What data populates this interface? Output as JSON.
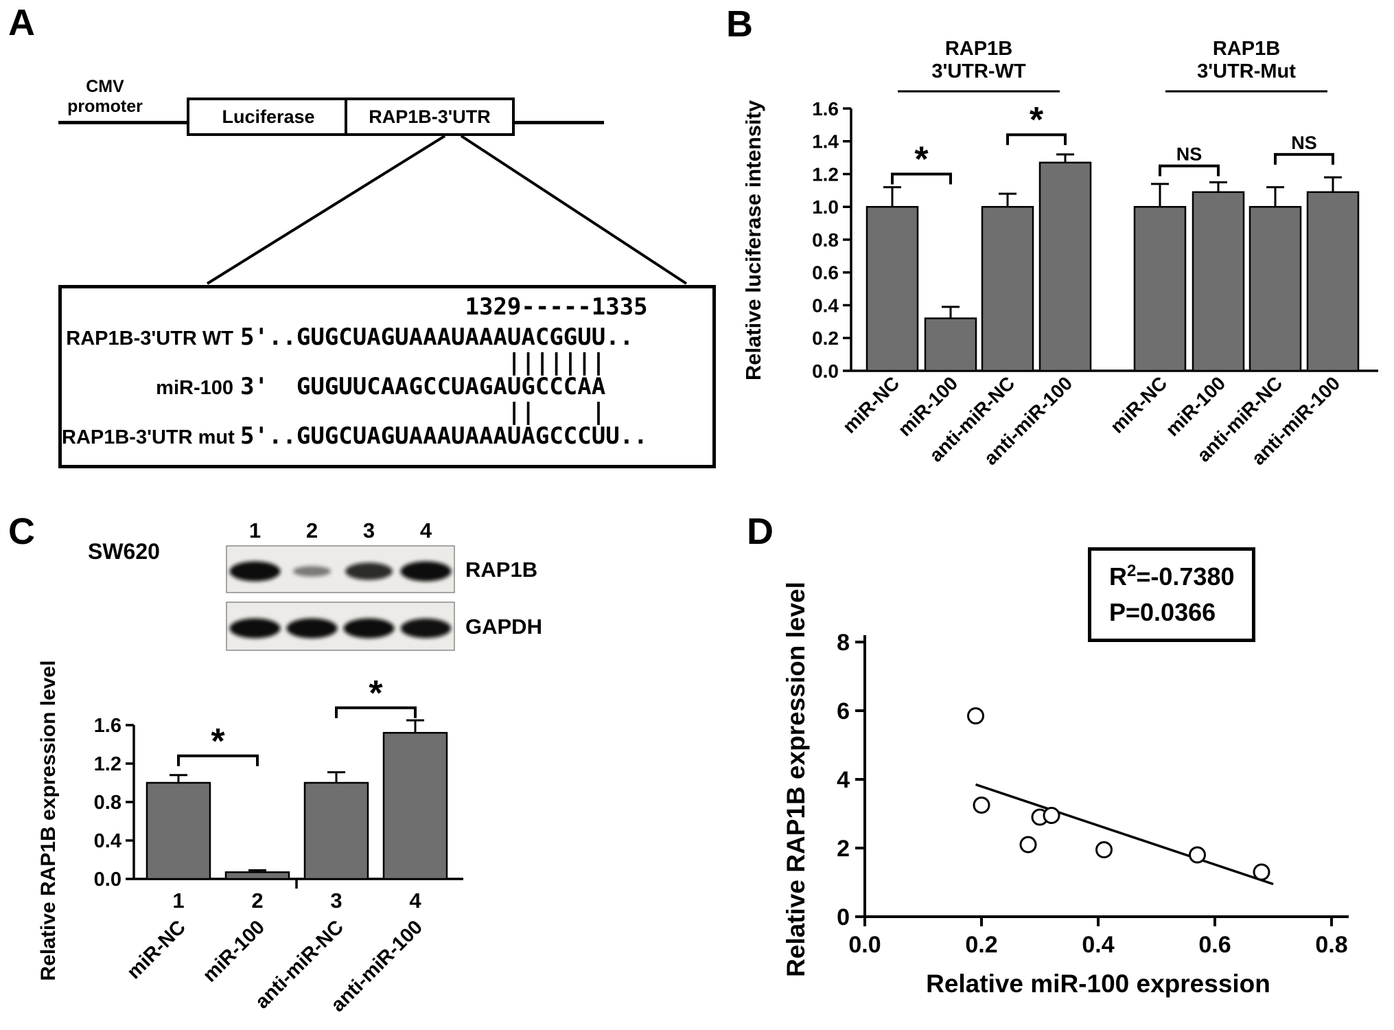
{
  "colors": {
    "bar_fill": "#6f6f6f",
    "bar_stroke": "#000000",
    "band_color": "#101010"
  },
  "panels": {
    "A": {
      "label": "A",
      "schematic": {
        "promoter_line1": "CMV",
        "promoter_line2": "promoter",
        "luciferase_box": "Luciferase",
        "utr_box": "RAP1B-3'UTR"
      },
      "alignment": {
        "numbers_row": "                1329-----1335",
        "rows": [
          {
            "label": "RAP1B-3'UTR WT",
            "seq": "5'..GUGCUAGUAAAUAAAUACGGUU.."
          },
          {
            "label": "",
            "seq": "                   |||||||"
          },
          {
            "label": "miR-100",
            "seq": "3'  GUGUUCAAGCCUAGAUGCCCAA"
          },
          {
            "label": "",
            "seq": "                   ||    |"
          },
          {
            "label": "RAP1B-3'UTR mut",
            "seq": "5'..GUGCUAGUAAAUAAAUAGCCCUU.."
          }
        ]
      }
    },
    "B": {
      "label": "B"
    },
    "C": {
      "label": "C",
      "cell_line": "SW620",
      "blot": {
        "lane_numbers": [
          "1",
          "2",
          "3",
          "4"
        ],
        "rows": [
          {
            "label": "RAP1B",
            "band_intensities": [
              1.0,
              0.28,
              0.8,
              1.0
            ]
          },
          {
            "label": "GAPDH",
            "band_intensities": [
              1.0,
              1.0,
              1.0,
              0.97
            ]
          }
        ]
      }
    },
    "D": {
      "label": "D",
      "stats": {
        "r_label": "R",
        "r_exponent": "2",
        "r_value": "=-0.7380",
        "p_value": "P=0.0366"
      }
    }
  },
  "chart_data": [
    {
      "id": "luciferase_reporter_assay",
      "type": "bar",
      "ylabel": "Relative luciferase intensity",
      "ylim": [
        0,
        1.6
      ],
      "yticks": [
        "0.0",
        "0.2",
        "0.4",
        "0.6",
        "0.8",
        "1.0",
        "1.2",
        "1.4",
        "1.6"
      ],
      "categories": [
        "miR-NC",
        "miR-100",
        "anti-miR-NC",
        "anti-miR-100",
        "miR-NC",
        "miR-100",
        "anti-miR-NC",
        "anti-miR-100"
      ],
      "values": [
        1.0,
        0.32,
        1.0,
        1.27,
        1.0,
        1.09,
        1.0,
        1.09
      ],
      "errors": [
        0.12,
        0.07,
        0.08,
        0.05,
        0.14,
        0.06,
        0.12,
        0.09
      ],
      "group_labels": [
        {
          "lines": [
            "RAP1B",
            "3'UTR-WT"
          ]
        },
        {
          "lines": [
            "RAP1B",
            "3'UTR-Mut"
          ]
        }
      ],
      "significance": [
        {
          "bars": [
            0,
            1
          ],
          "label": "*",
          "y": 1.2
        },
        {
          "bars": [
            2,
            3
          ],
          "label": "*",
          "y": 1.44
        },
        {
          "bars": [
            4,
            5
          ],
          "label": "NS",
          "y": 1.25
        },
        {
          "bars": [
            6,
            7
          ],
          "label": "NS",
          "y": 1.32
        }
      ]
    },
    {
      "id": "rap1b_expression_sw620",
      "type": "bar",
      "ylabel": "Relative RAP1B expression level",
      "ylim": [
        0,
        1.6
      ],
      "yticks": [
        "0.0",
        "0.4",
        "0.8",
        "1.2",
        "1.6"
      ],
      "bar_numbers": [
        "1",
        "2",
        "3",
        "4"
      ],
      "categories": [
        "miR-NC",
        "miR-100",
        "anti-miR-NC",
        "anti-miR-100"
      ],
      "values": [
        1.0,
        0.07,
        1.0,
        1.52
      ],
      "errors": [
        0.08,
        0.02,
        0.11,
        0.13
      ],
      "significance": [
        {
          "bars": [
            0,
            1
          ],
          "label": "*",
          "y": 1.28
        },
        {
          "bars": [
            2,
            3
          ],
          "label": "*",
          "y": 1.78
        }
      ]
    },
    {
      "id": "mir100_rap1b_correlation",
      "type": "scatter",
      "xlabel": "Relative miR-100 expression",
      "ylabel": "Relative RAP1B expression level",
      "xlim": [
        0,
        0.8
      ],
      "ylim": [
        0,
        8
      ],
      "xticks": [
        "0.0",
        "0.2",
        "0.4",
        "0.6",
        "0.8"
      ],
      "yticks": [
        "0",
        "2",
        "4",
        "6",
        "8"
      ],
      "points": [
        [
          0.19,
          5.85
        ],
        [
          0.2,
          3.25
        ],
        [
          0.28,
          2.1
        ],
        [
          0.3,
          2.9
        ],
        [
          0.32,
          2.95
        ],
        [
          0.41,
          1.95
        ],
        [
          0.57,
          1.8
        ],
        [
          0.68,
          1.3
        ]
      ],
      "trendline": {
        "x1": 0.19,
        "y1": 3.85,
        "x2": 0.7,
        "y2": 0.95
      },
      "annotation": [
        "R2=-0.7380",
        "P=0.0366"
      ]
    }
  ]
}
